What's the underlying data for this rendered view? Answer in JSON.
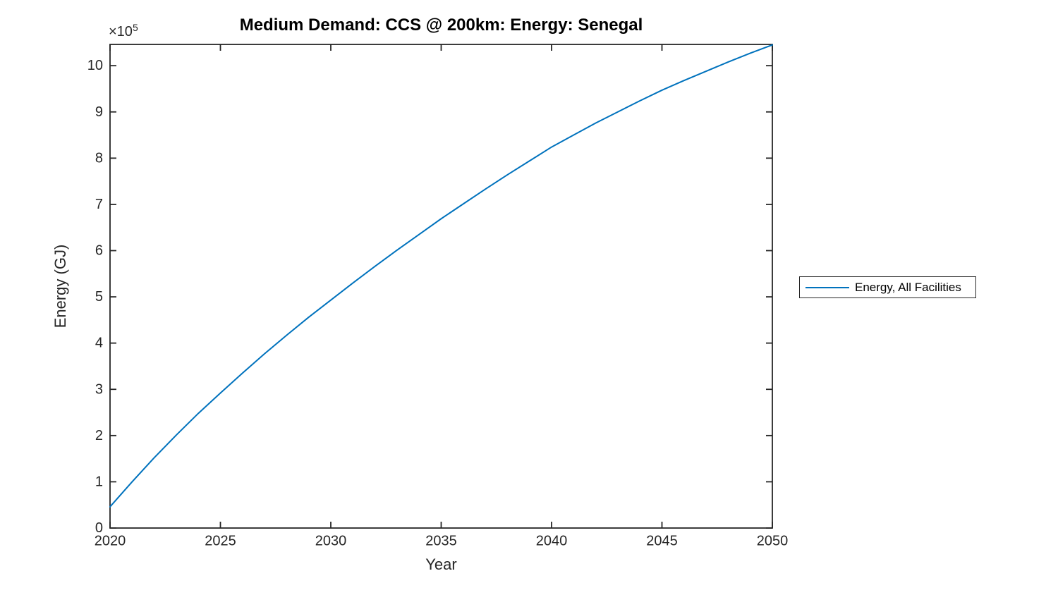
{
  "figure": {
    "title": "Medium Demand: CCS @ 200km: Energy: Senegal",
    "xlabel": "Year",
    "ylabel": "Energy (GJ)",
    "y_multiplier_base": "×10",
    "y_multiplier_exp": "5",
    "legend": {
      "position": "right-outside",
      "entries": [
        {
          "label": "Energy, All Facilities",
          "color": "#0072BD"
        }
      ]
    }
  },
  "colors": {
    "line": "#0072BD",
    "axis": "#262626",
    "tick_text": "#262626",
    "title_text": "#000000",
    "background": "#ffffff"
  },
  "chart_data": {
    "type": "line",
    "title": "Medium Demand: CCS @ 200km: Energy: Senegal",
    "xlabel": "Year",
    "ylabel": "Energy (GJ)",
    "y_unit_multiplier": "1e5",
    "grid": false,
    "legend_position": "right-outside",
    "xlim": [
      2020,
      2050
    ],
    "ylim": [
      0,
      10.46
    ],
    "xticks": [
      2020,
      2025,
      2030,
      2035,
      2040,
      2045,
      2050
    ],
    "yticks": [
      0,
      1,
      2,
      3,
      4,
      5,
      6,
      7,
      8,
      9,
      10
    ],
    "series": [
      {
        "name": "Energy, All Facilities",
        "color": "#0072BD",
        "x": [
          2020,
          2021,
          2022,
          2023,
          2024,
          2025,
          2026,
          2027,
          2028,
          2029,
          2030,
          2031,
          2032,
          2033,
          2034,
          2035,
          2036,
          2037,
          2038,
          2039,
          2040,
          2041,
          2042,
          2043,
          2044,
          2045,
          2046,
          2047,
          2048,
          2049,
          2050
        ],
        "y": [
          0.46,
          1.0,
          1.52,
          2.01,
          2.48,
          2.92,
          3.35,
          3.77,
          4.17,
          4.56,
          4.93,
          5.3,
          5.66,
          6.01,
          6.35,
          6.69,
          7.01,
          7.33,
          7.64,
          7.94,
          8.24,
          8.5,
          8.76,
          9.0,
          9.24,
          9.47,
          9.68,
          9.88,
          10.08,
          10.27,
          10.45
        ]
      }
    ]
  }
}
